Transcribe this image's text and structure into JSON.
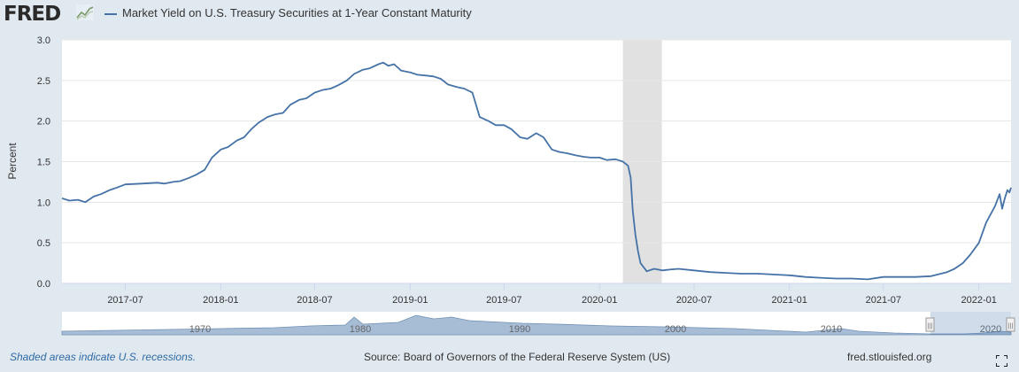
{
  "header": {
    "logo_text": "FRED",
    "logo_icon": "fred-graph-icon",
    "series_label": "Market Yield on U.S. Treasury Securities at 1-Year Constant Maturity"
  },
  "colors": {
    "series": "#4572a7",
    "recession": "#e1e1e1",
    "navigator_fill": "#a7bdd6",
    "background": "#e1e9f0"
  },
  "chart_data": {
    "type": "line",
    "title": "Market Yield on U.S. Treasury Securities at 1-Year Constant Maturity",
    "ylabel": "Percent",
    "xlabel": "",
    "ylim": [
      0,
      3.0
    ],
    "xlim": [
      "2017-03-01",
      "2022-03-04"
    ],
    "yticks": [
      "0.0",
      "0.5",
      "1.0",
      "1.5",
      "2.0",
      "2.5",
      "3.0"
    ],
    "xticks": [
      {
        "date": "2017-07-01",
        "label": "2017-07"
      },
      {
        "date": "2018-01-01",
        "label": "2018-01"
      },
      {
        "date": "2018-07-01",
        "label": "2018-07"
      },
      {
        "date": "2019-01-01",
        "label": "2019-01"
      },
      {
        "date": "2019-07-01",
        "label": "2019-07"
      },
      {
        "date": "2020-01-01",
        "label": "2020-01"
      },
      {
        "date": "2020-07-01",
        "label": "2020-07"
      },
      {
        "date": "2021-01-01",
        "label": "2021-01"
      },
      {
        "date": "2021-07-01",
        "label": "2021-07"
      },
      {
        "date": "2022-01-01",
        "label": "2022-01"
      }
    ],
    "recessions": [
      {
        "start": "2020-02-15",
        "end": "2020-04-30"
      }
    ],
    "series": [
      {
        "name": "Market Yield on U.S. Treasury Securities at 1-Year Constant Maturity",
        "x": [
          "2017-03-01",
          "2017-03-15",
          "2017-04-01",
          "2017-04-15",
          "2017-05-01",
          "2017-05-15",
          "2017-06-01",
          "2017-06-15",
          "2017-07-01",
          "2017-08-01",
          "2017-09-01",
          "2017-09-15",
          "2017-10-01",
          "2017-10-15",
          "2017-11-01",
          "2017-11-15",
          "2017-12-01",
          "2017-12-15",
          "2018-01-01",
          "2018-01-15",
          "2018-02-01",
          "2018-02-15",
          "2018-03-01",
          "2018-03-15",
          "2018-04-01",
          "2018-04-15",
          "2018-05-01",
          "2018-05-15",
          "2018-06-01",
          "2018-06-15",
          "2018-07-01",
          "2018-07-15",
          "2018-08-01",
          "2018-08-15",
          "2018-09-01",
          "2018-09-15",
          "2018-10-01",
          "2018-10-15",
          "2018-11-01",
          "2018-11-10",
          "2018-11-20",
          "2018-12-01",
          "2018-12-15",
          "2019-01-01",
          "2019-01-15",
          "2019-02-01",
          "2019-02-15",
          "2019-03-01",
          "2019-03-15",
          "2019-04-01",
          "2019-04-15",
          "2019-05-01",
          "2019-05-15",
          "2019-06-01",
          "2019-06-15",
          "2019-07-01",
          "2019-07-15",
          "2019-08-01",
          "2019-08-15",
          "2019-09-01",
          "2019-09-15",
          "2019-10-01",
          "2019-10-15",
          "2019-11-01",
          "2019-11-15",
          "2019-12-01",
          "2019-12-15",
          "2020-01-01",
          "2020-01-15",
          "2020-02-01",
          "2020-02-15",
          "2020-02-25",
          "2020-03-01",
          "2020-03-05",
          "2020-03-10",
          "2020-03-15",
          "2020-03-20",
          "2020-04-01",
          "2020-04-15",
          "2020-05-01",
          "2020-05-15",
          "2020-06-01",
          "2020-07-01",
          "2020-08-01",
          "2020-09-01",
          "2020-10-01",
          "2020-11-01",
          "2020-12-01",
          "2021-01-01",
          "2021-02-01",
          "2021-03-01",
          "2021-04-01",
          "2021-05-01",
          "2021-06-01",
          "2021-07-01",
          "2021-08-01",
          "2021-09-01",
          "2021-10-01",
          "2021-11-01",
          "2021-11-15",
          "2021-12-01",
          "2021-12-15",
          "2022-01-01",
          "2022-01-15",
          "2022-02-01",
          "2022-02-10",
          "2022-02-15",
          "2022-02-20",
          "2022-02-25",
          "2022-03-01",
          "2022-03-04"
        ],
        "y": [
          1.05,
          1.02,
          1.03,
          1.0,
          1.07,
          1.1,
          1.15,
          1.18,
          1.22,
          1.23,
          1.24,
          1.23,
          1.25,
          1.26,
          1.3,
          1.34,
          1.4,
          1.55,
          1.65,
          1.68,
          1.76,
          1.8,
          1.9,
          1.98,
          2.05,
          2.08,
          2.1,
          2.2,
          2.26,
          2.28,
          2.35,
          2.38,
          2.4,
          2.44,
          2.5,
          2.58,
          2.63,
          2.65,
          2.7,
          2.72,
          2.68,
          2.7,
          2.62,
          2.6,
          2.57,
          2.56,
          2.55,
          2.52,
          2.45,
          2.42,
          2.4,
          2.35,
          2.05,
          2.0,
          1.95,
          1.95,
          1.9,
          1.8,
          1.78,
          1.85,
          1.8,
          1.65,
          1.62,
          1.6,
          1.58,
          1.56,
          1.55,
          1.55,
          1.52,
          1.53,
          1.5,
          1.45,
          1.3,
          0.9,
          0.6,
          0.4,
          0.25,
          0.15,
          0.18,
          0.16,
          0.17,
          0.18,
          0.16,
          0.14,
          0.13,
          0.12,
          0.12,
          0.11,
          0.1,
          0.08,
          0.07,
          0.06,
          0.06,
          0.05,
          0.08,
          0.08,
          0.08,
          0.09,
          0.14,
          0.18,
          0.25,
          0.35,
          0.5,
          0.75,
          0.95,
          1.1,
          0.92,
          1.05,
          1.15,
          1.12,
          1.18
        ]
      }
    ]
  },
  "navigator": {
    "labels": [
      "1970",
      "1980",
      "1990",
      "2000",
      "2010",
      "2020"
    ],
    "handle_left": "|||",
    "handle_right": "|||"
  },
  "footer": {
    "note": "Shaded areas indicate U.S. recessions.",
    "source": "Source: Board of Governors of the Federal Reserve System (US)",
    "site": "fred.stlouisfed.org",
    "fullscreen_icon": "fullscreen-icon"
  }
}
